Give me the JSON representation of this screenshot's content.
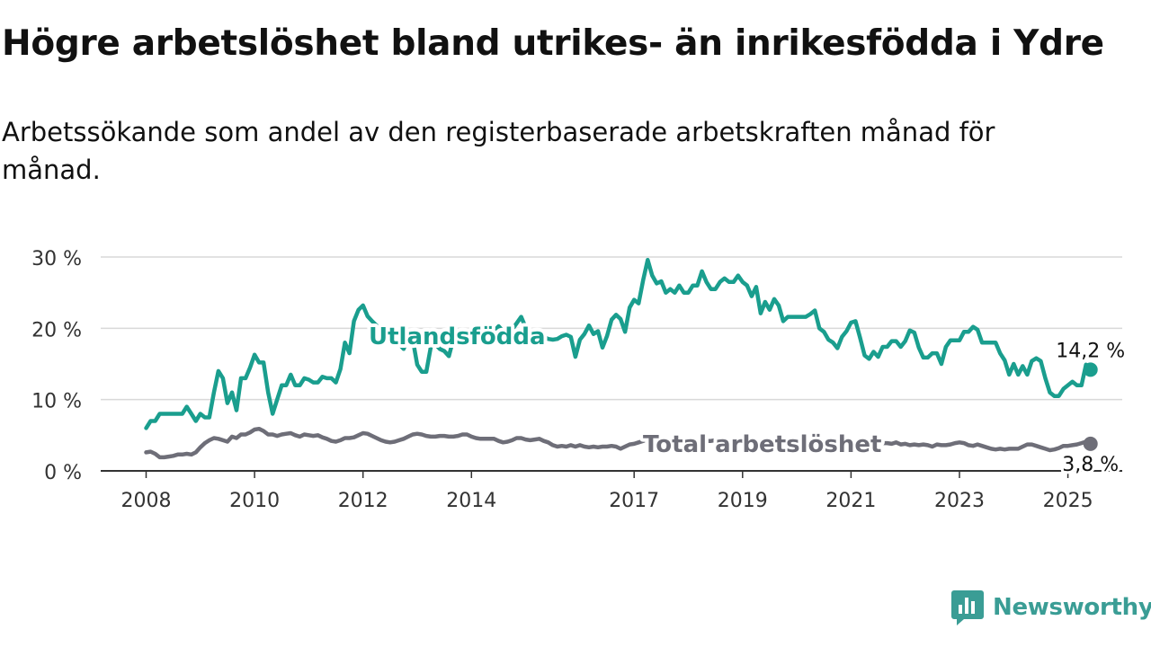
{
  "title": "Högre arbetslöshet bland utrikes- än inrikesfödda i Ydre",
  "subtitle": "Arbetssökande som andel av den registerbaserade arbetskraften månad för månad.",
  "brand": {
    "name": "Newsworthy",
    "color": "#3a9d95",
    "icon": "bar-chart-icon"
  },
  "chart_data": {
    "type": "line",
    "x_start": "2008-01",
    "x_frequency": "monthly",
    "x_ticks": [
      "2008",
      "2010",
      "2012",
      "2014",
      "2017",
      "2019",
      "2021",
      "2023",
      "2025"
    ],
    "x_tick_years": [
      2008,
      2010,
      2012,
      2014,
      2017,
      2019,
      2021,
      2023,
      2025
    ],
    "y_ticks": [
      "0 %",
      "10 %",
      "20 %",
      "30 %"
    ],
    "y_tick_values": [
      0,
      10,
      20,
      30
    ],
    "ylim": [
      0,
      30
    ],
    "grid": true,
    "series": [
      {
        "name": "Utlandsfödda",
        "color": "#1a9e8e",
        "end_label": "14,2 %",
        "values": [
          6,
          7,
          7,
          8,
          8,
          8,
          8,
          8,
          8,
          9,
          8,
          7,
          8,
          7.5,
          7.5,
          11,
          14,
          13,
          9.5,
          11,
          8.5,
          13,
          13,
          14.5,
          16.3,
          15.2,
          15.2,
          11,
          8,
          10,
          12,
          12,
          13.5,
          12,
          12,
          13,
          12.8,
          12.4,
          12.4,
          13.2,
          13,
          13,
          12.4,
          14.3,
          18,
          16.5,
          21,
          22.6,
          23.2,
          21.7,
          21,
          20.4,
          19.6,
          18.5,
          18.4,
          18.8,
          17.8,
          17.1,
          18.7,
          18.4,
          14.9,
          13.9,
          13.9,
          17.4,
          17.8,
          17.1,
          16.8,
          16.1,
          18.5,
          19.2,
          18.7,
          18.9,
          19.3,
          19.1,
          19.3,
          18.9,
          19.2,
          19.6,
          20.3,
          19.6,
          19.1,
          19.8,
          20.7,
          21.6,
          20.1,
          19.1,
          18.6,
          18.9,
          18.8,
          18.5,
          18.4,
          18.5,
          18.9,
          19.1,
          18.8,
          16,
          18.4,
          19.2,
          20.4,
          19.2,
          19.6,
          17.3,
          18.9,
          21.2,
          21.9,
          21.3,
          19.5,
          22.9,
          24,
          23.5,
          26.8,
          29.6,
          27.4,
          26.3,
          26.6,
          25,
          25.5,
          25,
          26,
          25,
          25,
          26,
          26,
          28,
          26.5,
          25.5,
          25.5,
          26.5,
          27,
          26.5,
          26.5,
          27.4,
          26.5,
          26,
          24.5,
          25.8,
          22.1,
          23.7,
          22.6,
          24.1,
          23.2,
          21,
          21.6,
          21.6,
          21.6,
          21.6,
          21.6,
          22,
          22.5,
          20,
          19.5,
          18.4,
          18,
          17.2,
          18.8,
          19.6,
          20.8,
          21,
          18.7,
          16.2,
          15.7,
          16.7,
          16,
          17.4,
          17.4,
          18.2,
          18.2,
          17.4,
          18.2,
          19.7,
          19.4,
          17.3,
          15.9,
          15.9,
          16.5,
          16.5,
          15,
          17.4,
          18.3,
          18.3,
          18.3,
          19.5,
          19.5,
          20.2,
          19.8,
          18,
          18,
          18,
          18,
          16.5,
          15.5,
          13.5,
          15,
          13.5,
          14.7,
          13.5,
          15.4,
          15.8,
          15.4,
          13,
          11,
          10.5,
          10.5,
          11.5,
          12,
          12.5,
          12,
          12,
          14.9,
          14.2
        ]
      },
      {
        "name": "Total arbetslöshet",
        "color": "#6e6e78",
        "end_label": "3,8 %",
        "values": [
          2.6,
          2.7,
          2.4,
          1.9,
          1.9,
          2,
          2.1,
          2.3,
          2.3,
          2.4,
          2.3,
          2.6,
          3.3,
          3.9,
          4.3,
          4.6,
          4.5,
          4.3,
          4.1,
          4.8,
          4.6,
          5.1,
          5.1,
          5.4,
          5.8,
          5.9,
          5.6,
          5.1,
          5.1,
          4.9,
          5.1,
          5.2,
          5.3,
          5,
          4.8,
          5.1,
          5,
          4.9,
          5,
          4.7,
          4.5,
          4.2,
          4.1,
          4.3,
          4.6,
          4.6,
          4.7,
          5,
          5.3,
          5.2,
          4.9,
          4.6,
          4.3,
          4.1,
          4,
          4.1,
          4.3,
          4.5,
          4.8,
          5.1,
          5.2,
          5.1,
          4.9,
          4.8,
          4.8,
          4.9,
          4.9,
          4.8,
          4.8,
          4.9,
          5.1,
          5.1,
          4.8,
          4.6,
          4.5,
          4.5,
          4.5,
          4.5,
          4.2,
          4,
          4.1,
          4.3,
          4.6,
          4.6,
          4.4,
          4.3,
          4.4,
          4.5,
          4.2,
          4,
          3.6,
          3.4,
          3.5,
          3.4,
          3.6,
          3.4,
          3.6,
          3.4,
          3.3,
          3.4,
          3.3,
          3.4,
          3.4,
          3.5,
          3.4,
          3.1,
          3.4,
          3.7,
          3.8,
          4,
          4.2,
          4.4,
          4.4,
          4.5,
          4.4,
          4.3,
          4.3,
          4.4,
          4.2,
          4.5,
          4.3,
          4.5,
          4.3,
          4.1,
          4.2,
          4.2,
          4.3,
          4.2,
          4.1,
          4.1,
          4.1,
          4.2,
          4.2,
          4.1,
          4.2,
          4.1,
          4.2,
          4.2,
          4.1,
          4.2,
          4.1,
          4.1,
          4.1,
          4.2,
          4.1,
          4.1,
          4.1,
          4.2,
          4.1,
          4.1,
          4,
          4,
          4.2,
          4.1,
          4,
          4,
          4.1,
          4.1,
          4,
          4,
          4,
          3.9,
          3.9,
          3.9,
          3.9,
          3.8,
          4,
          3.7,
          3.8,
          3.6,
          3.7,
          3.6,
          3.7,
          3.6,
          3.4,
          3.7,
          3.6,
          3.6,
          3.7,
          3.9,
          4,
          3.9,
          3.6,
          3.5,
          3.7,
          3.5,
          3.3,
          3.1,
          3,
          3.1,
          3,
          3.1,
          3.1,
          3.1,
          3.4,
          3.7,
          3.7,
          3.5,
          3.3,
          3.1,
          2.9,
          3,
          3.2,
          3.5,
          3.5,
          3.6,
          3.7,
          3.9,
          4.1,
          3.8
        ]
      }
    ]
  }
}
